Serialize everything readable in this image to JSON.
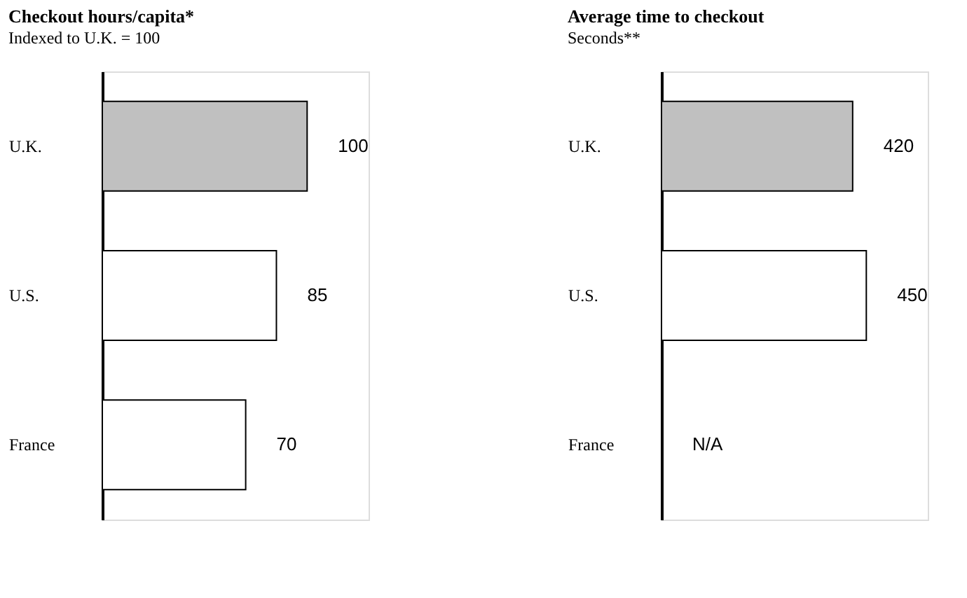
{
  "chart_data": [
    {
      "type": "bar",
      "orientation": "horizontal",
      "title": "Checkout hours/capita*",
      "subtitle": "Indexed to U.K. = 100",
      "categories": [
        "U.K.",
        "U.S.",
        "France"
      ],
      "values": [
        100,
        85,
        70
      ],
      "colors": [
        "#c0c0c0",
        "#ffffff",
        "#ffffff"
      ],
      "data_labels": true,
      "tick_labels": "y"
    },
    {
      "type": "bar",
      "orientation": "horizontal",
      "title": "Average time to checkout",
      "subtitle": "Seconds**",
      "categories": [
        "U.K.",
        "U.S.",
        "France"
      ],
      "values": [
        420,
        450,
        null
      ],
      "colors": [
        "#c0c0c0",
        "#ffffff",
        "#ffffff"
      ],
      "value_labels": [
        "420",
        "450",
        "N/A"
      ],
      "tick_labels": "y"
    }
  ]
}
